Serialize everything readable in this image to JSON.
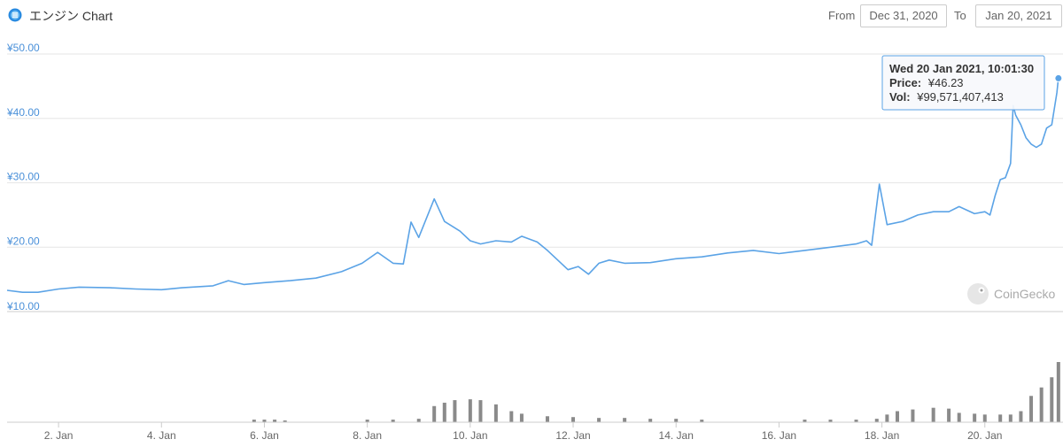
{
  "header": {
    "title": "エンジン Chart",
    "from_label": "From",
    "to_label": "To",
    "from_date": "Dec 31, 2020",
    "to_date": "Jan 20, 2021"
  },
  "tooltip": {
    "date": "Wed 20 Jan 2021, 10:01:30",
    "price_label": "Price:",
    "price_value": "¥46.23",
    "vol_label": "Vol:",
    "vol_value": "¥99,571,407,413"
  },
  "watermark": "CoinGecko",
  "colors": {
    "price_line": "#5ba3e6",
    "volume_bar": "#8a8a8a",
    "axis_label": "#4a90d9"
  },
  "chart_data": [
    {
      "type": "line",
      "series": [
        {
          "x_days": [
            0.0,
            0.3,
            0.6,
            1.0,
            1.4,
            2.0,
            2.5,
            3.0,
            3.4,
            4.0,
            4.3,
            4.6,
            5.0,
            5.5,
            6.0,
            6.5,
            6.9,
            7.2,
            7.5,
            7.7,
            7.85,
            8.0,
            8.3,
            8.5,
            8.6,
            8.8,
            9.0,
            9.2,
            9.5,
            9.8,
            10.0,
            10.3,
            10.5,
            10.7,
            10.9,
            11.1,
            11.3,
            11.5,
            11.7,
            12.0,
            12.5,
            13.0,
            13.5,
            14.0,
            14.5,
            15.0,
            15.5,
            16.0,
            16.5,
            16.7,
            16.8,
            16.95,
            17.1,
            17.4,
            17.7,
            18.0,
            18.3,
            18.5,
            18.8,
            19.0,
            19.1,
            19.2,
            19.3,
            19.4,
            19.5,
            19.55,
            19.6,
            19.7,
            19.8,
            19.9,
            20.0,
            20.1,
            20.2,
            20.3,
            20.4,
            20.43
          ],
          "y": [
            13.3,
            13.0,
            13.0,
            13.5,
            13.8,
            13.7,
            13.5,
            13.4,
            13.7,
            14.0,
            14.8,
            14.2,
            14.5,
            14.8,
            15.2,
            16.2,
            17.5,
            19.2,
            17.5,
            17.4,
            23.9,
            21.5,
            27.5,
            24.0,
            23.5,
            22.5,
            21.0,
            20.5,
            21.0,
            20.8,
            21.7,
            20.8,
            19.5,
            18.0,
            16.5,
            17.0,
            15.8,
            17.5,
            18.0,
            17.5,
            17.6,
            18.2,
            18.5,
            19.1,
            19.5,
            19.0,
            19.5,
            20.0,
            20.5,
            21.0,
            20.3,
            29.8,
            23.5,
            24.0,
            25.0,
            25.5,
            25.5,
            26.3,
            25.2,
            25.5,
            25.0,
            28.0,
            30.5,
            30.8,
            33.0,
            42.0,
            40.5,
            39.0,
            37.0,
            36.0,
            35.5,
            36.0,
            38.5,
            39.0,
            44.0,
            46.23
          ]
        }
      ],
      "ylim": [
        10,
        50
      ],
      "xlim": [
        0,
        20.45
      ],
      "yticks": [
        "¥10.00",
        "¥20.00",
        "¥30.00",
        "¥40.00",
        "¥50.00"
      ],
      "ytick_values": [
        10,
        20,
        30,
        40,
        50
      ],
      "grid": true
    },
    {
      "type": "bar",
      "x_days": [
        4.8,
        5.0,
        5.2,
        5.4,
        7.0,
        7.5,
        8.0,
        8.3,
        8.5,
        8.7,
        9.0,
        9.2,
        9.5,
        9.8,
        10.0,
        10.5,
        11.0,
        11.5,
        12.0,
        12.5,
        13.0,
        13.5,
        15.5,
        16.0,
        16.5,
        16.9,
        17.1,
        17.3,
        17.6,
        18.0,
        18.3,
        18.5,
        18.8,
        19.0,
        19.3,
        19.5,
        19.7,
        19.9,
        20.1,
        20.3,
        20.43
      ],
      "values": [
        2,
        2,
        2,
        1,
        2,
        2,
        3,
        18,
        22,
        25,
        26,
        25,
        20,
        12,
        9,
        6,
        5,
        4,
        4,
        3,
        3,
        2,
        2,
        2,
        2,
        3,
        8,
        12,
        14,
        16,
        15,
        10,
        9,
        8,
        8,
        8,
        12,
        30,
        40,
        52,
        70
      ]
    }
  ],
  "xticks": [
    {
      "label": "2. Jan",
      "day": 1
    },
    {
      "label": "4. Jan",
      "day": 3
    },
    {
      "label": "6. Jan",
      "day": 5
    },
    {
      "label": "8. Jan",
      "day": 7
    },
    {
      "label": "10. Jan",
      "day": 9
    },
    {
      "label": "12. Jan",
      "day": 11
    },
    {
      "label": "14. Jan",
      "day": 13
    },
    {
      "label": "16. Jan",
      "day": 15
    },
    {
      "label": "18. Jan",
      "day": 17
    },
    {
      "label": "20. Jan",
      "day": 19
    }
  ]
}
